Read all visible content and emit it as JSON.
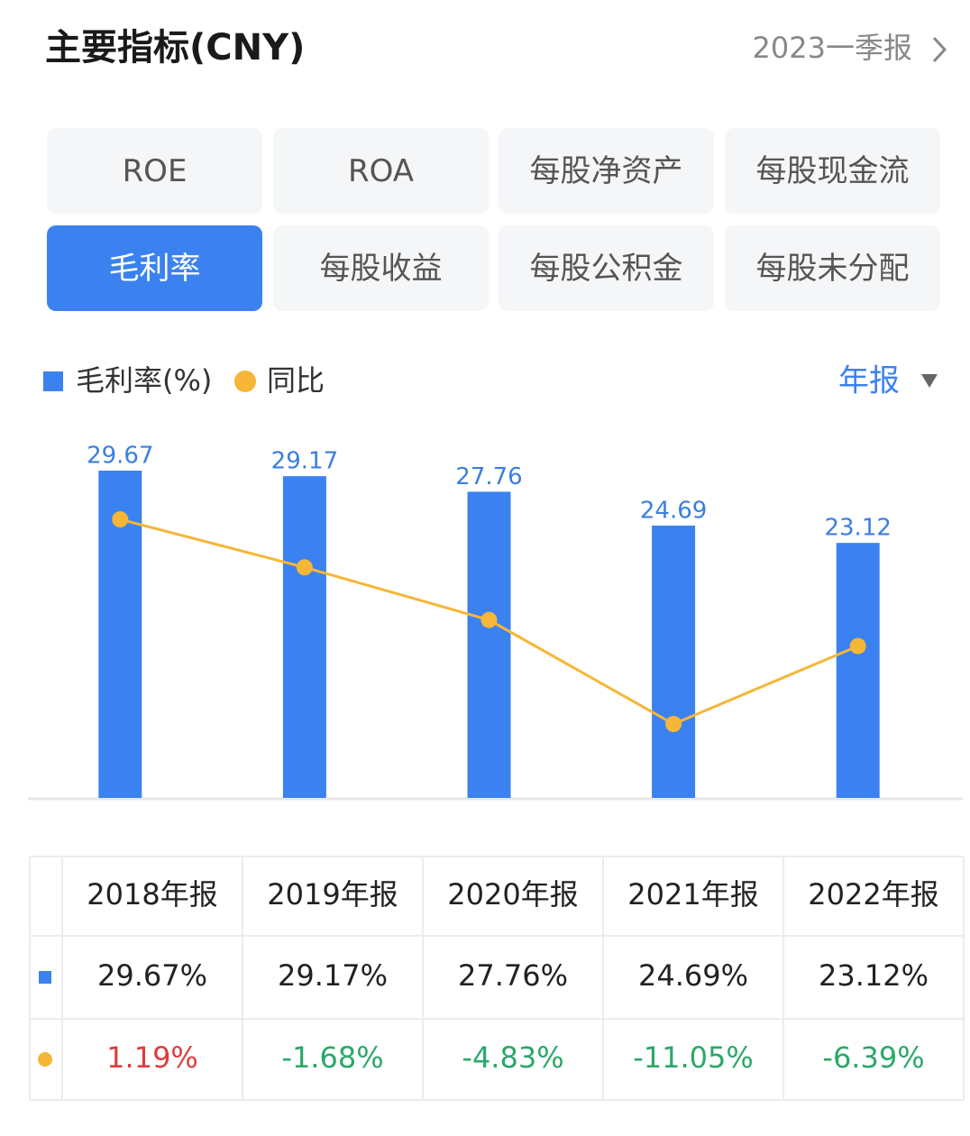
{
  "header": {
    "title": "主要指标(CNY)",
    "period": "2023一季报"
  },
  "tabs": [
    "ROE",
    "ROA",
    "每股净资产",
    "每股现金流",
    "毛利率",
    "每股收益",
    "每股公积金",
    "每股未分配"
  ],
  "active_tab": 4,
  "period_selector": "年报",
  "chart_data": {
    "type": "bar",
    "categories": [
      "2018年报",
      "2019年报",
      "2020年报",
      "2021年报",
      "2022年报"
    ],
    "series": [
      {
        "name": "毛利率(%)",
        "type": "bar",
        "color": "#3b82f0",
        "values": [
          29.67,
          29.17,
          27.76,
          24.69,
          23.12
        ],
        "value_labels": [
          "29.67%",
          "29.17%",
          "27.76%",
          "24.69%",
          "23.12%"
        ]
      },
      {
        "name": "同比",
        "type": "line",
        "axis": "y2",
        "color": "#f6b637",
        "values": [
          1.19,
          -1.68,
          -4.83,
          -11.05,
          -6.39
        ],
        "value_labels": [
          "1.19%",
          "-1.68%",
          "-4.83%",
          "-11.05%",
          "-6.39%"
        ]
      }
    ],
    "ylim": [
      0,
      30
    ],
    "y2lim": [
      -15.47,
      4.32
    ]
  }
}
